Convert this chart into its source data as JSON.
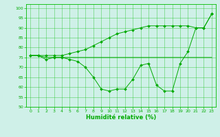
{
  "xlabel": "Humidité relative (%)",
  "background_color": "#cff0e8",
  "grid_color": "#00bb00",
  "line_color": "#00aa00",
  "xlim": [
    -0.5,
    23.5
  ],
  "ylim": [
    50,
    102
  ],
  "yticks": [
    50,
    55,
    60,
    65,
    70,
    75,
    80,
    85,
    90,
    95,
    100
  ],
  "xticks": [
    0,
    1,
    2,
    3,
    4,
    5,
    6,
    7,
    8,
    9,
    10,
    11,
    12,
    13,
    14,
    15,
    16,
    17,
    18,
    19,
    20,
    21,
    22,
    23
  ],
  "series": [
    [
      76,
      76,
      74,
      75,
      75,
      74,
      73,
      70,
      65,
      59,
      58,
      59,
      59,
      64,
      71,
      72,
      61,
      58,
      58,
      72,
      78,
      90,
      90,
      97
    ],
    [
      76,
      76,
      75,
      75,
      75,
      75,
      75,
      75,
      75,
      75,
      75,
      75,
      75,
      75,
      75,
      75,
      75,
      75,
      75,
      75,
      75,
      75,
      75,
      75
    ],
    [
      76,
      76,
      76,
      76,
      76,
      77,
      78,
      79,
      81,
      83,
      85,
      87,
      88,
      89,
      90,
      91,
      91,
      91,
      91,
      91,
      91,
      90,
      90,
      97
    ]
  ],
  "marker_series": [
    0,
    2
  ],
  "figsize": [
    3.2,
    2.0
  ],
  "dpi": 100
}
